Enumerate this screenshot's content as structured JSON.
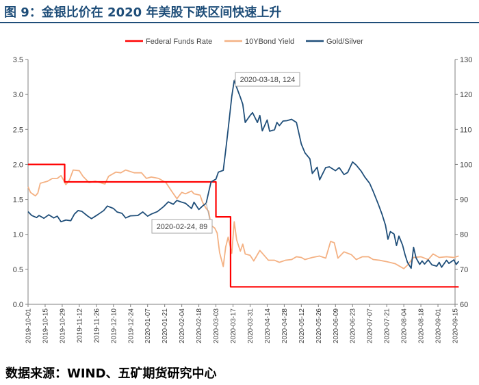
{
  "header": {
    "title": "图 9：金银比价在 2020 年美股下跌区间快速上升"
  },
  "footer": {
    "source": "数据来源：WIND、五矿期货研究中心"
  },
  "chart_data": {
    "type": "line",
    "x_ticks": [
      "2019-10-01",
      "2019-10-15",
      "2019-10-29",
      "2019-11-12",
      "2019-11-26",
      "2019-12-10",
      "2019-12-24",
      "2020-01-07",
      "2020-01-21",
      "2020-02-04",
      "2020-02-18",
      "2020-03-03",
      "2020-03-17",
      "2020-03-31",
      "2020-04-14",
      "2020-04-28",
      "2020-05-12",
      "2020-05-26",
      "2020-06-09",
      "2020-06-23",
      "2020-07-07",
      "2020-07-21",
      "2020-08-04",
      "2020-08-18",
      "2020-09-01",
      "2020-09-15"
    ],
    "y_left": {
      "min": 0,
      "max": 3.5,
      "ticks": [
        "0.0",
        "0.5",
        "1.0",
        "1.5",
        "2.0",
        "2.5",
        "3.0",
        "3.5"
      ]
    },
    "y_right": {
      "min": 60,
      "max": 130,
      "ticks": [
        "60",
        "70",
        "80",
        "90",
        "100",
        "110",
        "120",
        "130"
      ]
    },
    "legend": {
      "position": "top-center"
    },
    "grid": false,
    "series": [
      {
        "name": "Federal Funds Rate",
        "axis": "left",
        "color": "#ff0000",
        "step": true,
        "points": [
          [
            "2019-10-01",
            2.0
          ],
          [
            "2019-10-31",
            2.0
          ],
          [
            "2019-10-31",
            1.75
          ],
          [
            "2020-03-03",
            1.75
          ],
          [
            "2020-03-03",
            1.25
          ],
          [
            "2020-03-15",
            1.25
          ],
          [
            "2020-03-15",
            0.25
          ],
          [
            "2020-09-18",
            0.25
          ]
        ]
      },
      {
        "name": "10YBond Yield",
        "axis": "left",
        "color": "#f4b183",
        "points": [
          [
            "2019-10-01",
            1.68
          ],
          [
            "2019-10-03",
            1.6
          ],
          [
            "2019-10-07",
            1.55
          ],
          [
            "2019-10-09",
            1.59
          ],
          [
            "2019-10-11",
            1.73
          ],
          [
            "2019-10-17",
            1.76
          ],
          [
            "2019-10-21",
            1.8
          ],
          [
            "2019-10-25",
            1.8
          ],
          [
            "2019-10-28",
            1.84
          ],
          [
            "2019-10-30",
            1.78
          ],
          [
            "2019-11-01",
            1.71
          ],
          [
            "2019-11-04",
            1.78
          ],
          [
            "2019-11-07",
            1.92
          ],
          [
            "2019-11-12",
            1.91
          ],
          [
            "2019-11-15",
            1.83
          ],
          [
            "2019-11-20",
            1.74
          ],
          [
            "2019-11-25",
            1.76
          ],
          [
            "2019-12-03",
            1.72
          ],
          [
            "2019-12-06",
            1.83
          ],
          [
            "2019-12-12",
            1.89
          ],
          [
            "2019-12-16",
            1.88
          ],
          [
            "2019-12-20",
            1.92
          ],
          [
            "2019-12-27",
            1.88
          ],
          [
            "2020-01-02",
            1.88
          ],
          [
            "2020-01-06",
            1.8
          ],
          [
            "2020-01-10",
            1.82
          ],
          [
            "2020-01-16",
            1.8
          ],
          [
            "2020-01-22",
            1.74
          ],
          [
            "2020-01-27",
            1.61
          ],
          [
            "2020-01-31",
            1.51
          ],
          [
            "2020-02-04",
            1.6
          ],
          [
            "2020-02-07",
            1.58
          ],
          [
            "2020-02-12",
            1.62
          ],
          [
            "2020-02-14",
            1.58
          ],
          [
            "2020-02-19",
            1.56
          ],
          [
            "2020-02-21",
            1.46
          ],
          [
            "2020-02-24",
            1.37
          ],
          [
            "2020-02-26",
            1.33
          ],
          [
            "2020-02-28",
            1.13
          ],
          [
            "2020-03-02",
            1.09
          ],
          [
            "2020-03-04",
            1.02
          ],
          [
            "2020-03-06",
            0.74
          ],
          [
            "2020-03-09",
            0.54
          ],
          [
            "2020-03-11",
            0.82
          ],
          [
            "2020-03-13",
            0.96
          ],
          [
            "2020-03-16",
            0.73
          ],
          [
            "2020-03-18",
            1.18
          ],
          [
            "2020-03-20",
            0.92
          ],
          [
            "2020-03-23",
            0.76
          ],
          [
            "2020-03-25",
            0.86
          ],
          [
            "2020-03-27",
            0.72
          ],
          [
            "2020-03-31",
            0.7
          ],
          [
            "2020-04-03",
            0.62
          ],
          [
            "2020-04-08",
            0.77
          ],
          [
            "2020-04-10",
            0.73
          ],
          [
            "2020-04-15",
            0.63
          ],
          [
            "2020-04-20",
            0.63
          ],
          [
            "2020-04-24",
            0.6
          ],
          [
            "2020-04-29",
            0.63
          ],
          [
            "2020-05-04",
            0.64
          ],
          [
            "2020-05-08",
            0.68
          ],
          [
            "2020-05-12",
            0.67
          ],
          [
            "2020-05-15",
            0.64
          ],
          [
            "2020-05-21",
            0.67
          ],
          [
            "2020-05-27",
            0.69
          ],
          [
            "2020-06-01",
            0.66
          ],
          [
            "2020-06-05",
            0.9
          ],
          [
            "2020-06-08",
            0.88
          ],
          [
            "2020-06-11",
            0.66
          ],
          [
            "2020-06-16",
            0.75
          ],
          [
            "2020-06-22",
            0.71
          ],
          [
            "2020-06-26",
            0.64
          ],
          [
            "2020-07-01",
            0.68
          ],
          [
            "2020-07-06",
            0.68
          ],
          [
            "2020-07-10",
            0.64
          ],
          [
            "2020-07-15",
            0.63
          ],
          [
            "2020-07-21",
            0.61
          ],
          [
            "2020-07-28",
            0.58
          ],
          [
            "2020-08-04",
            0.51
          ],
          [
            "2020-08-07",
            0.56
          ],
          [
            "2020-08-12",
            0.67
          ],
          [
            "2020-08-18",
            0.68
          ],
          [
            "2020-08-24",
            0.64
          ],
          [
            "2020-08-28",
            0.72
          ],
          [
            "2020-09-02",
            0.67
          ],
          [
            "2020-09-08",
            0.68
          ],
          [
            "2020-09-14",
            0.67
          ],
          [
            "2020-09-18",
            0.69
          ]
        ]
      },
      {
        "name": "Gold/Silver",
        "axis": "right",
        "color": "#1f4e79",
        "points": [
          [
            "2019-10-01",
            86.5
          ],
          [
            "2019-10-04",
            85.4
          ],
          [
            "2019-10-08",
            84.8
          ],
          [
            "2019-10-10",
            85.4
          ],
          [
            "2019-10-14",
            84.6
          ],
          [
            "2019-10-18",
            85.6
          ],
          [
            "2019-10-22",
            84.7
          ],
          [
            "2019-10-25",
            85.2
          ],
          [
            "2019-10-28",
            83.6
          ],
          [
            "2019-11-01",
            84.1
          ],
          [
            "2019-11-05",
            83.9
          ],
          [
            "2019-11-08",
            85.8
          ],
          [
            "2019-11-11",
            86.8
          ],
          [
            "2019-11-14",
            86.6
          ],
          [
            "2019-11-19",
            85.2
          ],
          [
            "2019-11-22",
            84.5
          ],
          [
            "2019-11-27",
            85.6
          ],
          [
            "2019-12-02",
            86.8
          ],
          [
            "2019-12-05",
            88.1
          ],
          [
            "2019-12-10",
            87.4
          ],
          [
            "2019-12-13",
            86.4
          ],
          [
            "2019-12-17",
            86.0
          ],
          [
            "2019-12-20",
            84.7
          ],
          [
            "2019-12-24",
            85.3
          ],
          [
            "2019-12-30",
            85.4
          ],
          [
            "2020-01-03",
            86.4
          ],
          [
            "2020-01-07",
            85.2
          ],
          [
            "2020-01-10",
            85.8
          ],
          [
            "2020-01-15",
            86.5
          ],
          [
            "2020-01-20",
            87.9
          ],
          [
            "2020-01-24",
            89.3
          ],
          [
            "2020-01-28",
            88.6
          ],
          [
            "2020-01-31",
            89.7
          ],
          [
            "2020-02-04",
            89.2
          ],
          [
            "2020-02-07",
            88.9
          ],
          [
            "2020-02-12",
            87.4
          ],
          [
            "2020-02-14",
            89.2
          ],
          [
            "2020-02-18",
            87.1
          ],
          [
            "2020-02-21",
            88.1
          ],
          [
            "2020-02-24",
            88.9
          ],
          [
            "2020-02-26",
            92.0
          ],
          [
            "2020-02-28",
            95.0
          ],
          [
            "2020-03-03",
            95.8
          ],
          [
            "2020-03-05",
            97.8
          ],
          [
            "2020-03-09",
            98.3
          ],
          [
            "2020-03-11",
            104.0
          ],
          [
            "2020-03-13",
            110.0
          ],
          [
            "2020-03-16",
            119.5
          ],
          [
            "2020-03-18",
            124.0
          ],
          [
            "2020-03-20",
            122.0
          ],
          [
            "2020-03-23",
            119.2
          ],
          [
            "2020-03-25",
            117.2
          ],
          [
            "2020-03-27",
            112.0
          ],
          [
            "2020-03-31",
            114.0
          ],
          [
            "2020-04-02",
            114.8
          ],
          [
            "2020-04-06",
            112.0
          ],
          [
            "2020-04-08",
            114.0
          ],
          [
            "2020-04-10",
            109.6
          ],
          [
            "2020-04-14",
            112.7
          ],
          [
            "2020-04-16",
            109.5
          ],
          [
            "2020-04-20",
            109.9
          ],
          [
            "2020-04-22",
            112.0
          ],
          [
            "2020-04-24",
            111.1
          ],
          [
            "2020-04-27",
            112.4
          ],
          [
            "2020-04-30",
            112.5
          ],
          [
            "2020-05-04",
            112.9
          ],
          [
            "2020-05-08",
            112.0
          ],
          [
            "2020-05-12",
            105.8
          ],
          [
            "2020-05-15",
            103.3
          ],
          [
            "2020-05-19",
            101.6
          ],
          [
            "2020-05-21",
            97.4
          ],
          [
            "2020-05-25",
            99.2
          ],
          [
            "2020-05-27",
            95.6
          ],
          [
            "2020-06-01",
            99.1
          ],
          [
            "2020-06-04",
            99.3
          ],
          [
            "2020-06-09",
            98.2
          ],
          [
            "2020-06-12",
            99.1
          ],
          [
            "2020-06-16",
            97.1
          ],
          [
            "2020-06-19",
            97.7
          ],
          [
            "2020-06-23",
            100.7
          ],
          [
            "2020-06-26",
            99.8
          ],
          [
            "2020-06-30",
            98.1
          ],
          [
            "2020-07-03",
            96.4
          ],
          [
            "2020-07-07",
            94.6
          ],
          [
            "2020-07-10",
            92.2
          ],
          [
            "2020-07-14",
            88.7
          ],
          [
            "2020-07-17",
            85.9
          ],
          [
            "2020-07-20",
            82.6
          ],
          [
            "2020-07-22",
            78.6
          ],
          [
            "2020-07-24",
            80.8
          ],
          [
            "2020-07-27",
            80.1
          ],
          [
            "2020-07-29",
            76.8
          ],
          [
            "2020-07-31",
            79.5
          ],
          [
            "2020-08-03",
            76.9
          ],
          [
            "2020-08-05",
            74.2
          ],
          [
            "2020-08-07",
            72.0
          ],
          [
            "2020-08-10",
            70.3
          ],
          [
            "2020-08-12",
            76.3
          ],
          [
            "2020-08-14",
            73.3
          ],
          [
            "2020-08-17",
            71.4
          ],
          [
            "2020-08-19",
            72.4
          ],
          [
            "2020-08-21",
            71.5
          ],
          [
            "2020-08-24",
            72.7
          ],
          [
            "2020-08-27",
            71.3
          ],
          [
            "2020-08-31",
            70.9
          ],
          [
            "2020-09-02",
            72.0
          ],
          [
            "2020-09-04",
            70.6
          ],
          [
            "2020-09-08",
            72.6
          ],
          [
            "2020-09-10",
            71.7
          ],
          [
            "2020-09-14",
            72.7
          ],
          [
            "2020-09-16",
            71.4
          ],
          [
            "2020-09-18",
            72.3
          ]
        ]
      }
    ],
    "annotations": [
      {
        "label": "2020-03-18, 124",
        "x": "2020-03-18",
        "y": 124,
        "axis": "right"
      },
      {
        "label": "2020-02-24, 89",
        "x": "2020-02-24",
        "y": 89,
        "axis": "right"
      }
    ]
  }
}
